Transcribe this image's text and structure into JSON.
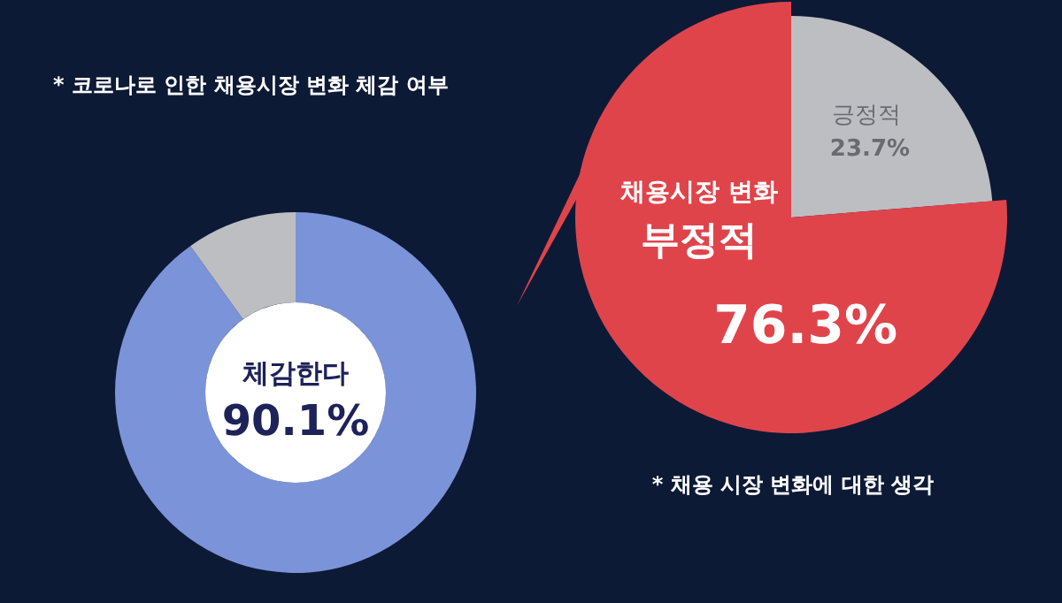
{
  "chart_data": [
    {
      "type": "donut",
      "title": "* 코로나로 인한 채용시장 변화 체감 여부",
      "categories": [
        "체감한다",
        null
      ],
      "values": [
        90.1,
        9.9
      ],
      "colors": [
        "#7b93d9",
        "#bdbec2"
      ],
      "value_labels": [
        "90.1%",
        null
      ]
    },
    {
      "type": "pie",
      "title": "* 채용 시장 변화에 대한 생각",
      "categories": [
        "긍정적",
        "부정적"
      ],
      "values": [
        23.7,
        76.3
      ],
      "colors": [
        "#bdbec2",
        "#e0444b"
      ],
      "value_labels": [
        "23.7%",
        "76.3%"
      ],
      "annotations": [
        "채용시장 변화"
      ]
    }
  ]
}
